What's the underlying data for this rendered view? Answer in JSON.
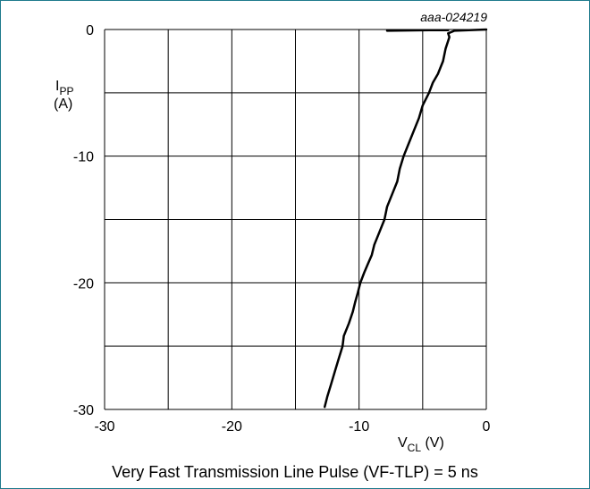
{
  "chart_data": {
    "type": "line",
    "tag": "aaa-024219",
    "xlabel_main": "V",
    "xlabel_sub": "CL",
    "xlabel_unit": " (V)",
    "ylabel_main": "I",
    "ylabel_sub": "PP",
    "ylabel_unit": "(A)",
    "xlim": [
      -30,
      0
    ],
    "ylim": [
      -30,
      0
    ],
    "xticks": [
      -30,
      -20,
      -10,
      0
    ],
    "yticks": [
      0,
      -10,
      -20,
      -30
    ],
    "grid": true,
    "caption": "Very Fast Transmission Line Pulse (VF-TLP) = 5 ns",
    "colors": {
      "line": "#000000",
      "grid": "#000000",
      "frame": "#1f7a8c"
    },
    "series": [
      {
        "x": [
          0,
          -2.5,
          -3.0,
          -2.9,
          -3.2,
          -3.4,
          -3.8,
          -4.2,
          -4.5,
          -5.0,
          -5.3,
          -5.7,
          -6.1,
          -6.5,
          -6.8,
          -7.0,
          -7.4,
          -7.8,
          -8.0,
          -8.4,
          -8.8,
          -9.0,
          -9.3,
          -9.6,
          -9.9,
          -10.1,
          -10.3,
          -10.5,
          -10.8,
          -11.2,
          -11.3,
          -11.6,
          -11.9,
          -12.2,
          -12.5,
          -12.7
        ],
        "y": [
          0,
          -0.1,
          -0.3,
          -0.6,
          -1.5,
          -2.5,
          -3.5,
          -4.2,
          -5.0,
          -6.0,
          -7.0,
          -8.0,
          -9.0,
          -10.0,
          -11.0,
          -12.0,
          -13.0,
          -14.0,
          -15.0,
          -16.0,
          -17.0,
          -17.8,
          -18.5,
          -19.2,
          -20.0,
          -20.8,
          -21.5,
          -22.3,
          -23.2,
          -24.2,
          -25.0,
          -26.0,
          -27.0,
          -28.0,
          -29.0,
          -29.8
        ]
      },
      {
        "x": [
          -7.8,
          -4.5,
          -3.0
        ],
        "y": [
          -0.1,
          -0.05,
          -0.05
        ]
      }
    ]
  }
}
